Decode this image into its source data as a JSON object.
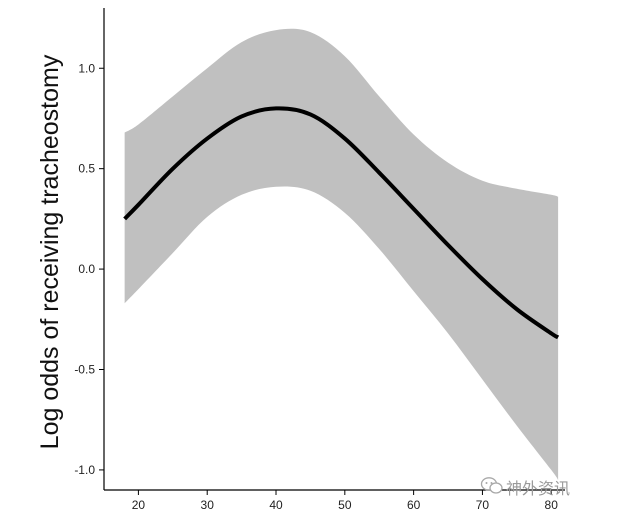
{
  "chart_data": {
    "type": "line",
    "title": "",
    "xlabel": "",
    "ylabel": "Log odds of receiving tracheostomy",
    "xlim": [
      15,
      82
    ],
    "ylim": [
      -1.1,
      1.3
    ],
    "x_ticks": [
      20,
      30,
      40,
      50,
      60,
      70,
      80
    ],
    "y_ticks": [
      -1.0,
      -0.5,
      0.0,
      0.5,
      1.0
    ],
    "y_tick_labels": [
      "-1.0",
      "-0.5",
      "0.0",
      "0.5",
      "1.0"
    ],
    "grid": false,
    "legend": "none",
    "series": [
      {
        "type": "line",
        "color": "#000000",
        "x": [
          18,
          20,
          25,
          30,
          35,
          40,
          45,
          50,
          55,
          60,
          65,
          70,
          75,
          80,
          81
        ],
        "y": [
          0.25,
          0.32,
          0.5,
          0.65,
          0.76,
          0.8,
          0.77,
          0.65,
          0.48,
          0.3,
          0.12,
          -0.05,
          -0.2,
          -0.32,
          -0.34
        ]
      },
      {
        "type": "confidence-band",
        "color": "#c0c0c0",
        "x": [
          18,
          20,
          25,
          30,
          35,
          40,
          45,
          50,
          55,
          60,
          65,
          70,
          75,
          80,
          81
        ],
        "upper": [
          0.68,
          0.72,
          0.86,
          1.0,
          1.13,
          1.19,
          1.18,
          1.06,
          0.86,
          0.67,
          0.53,
          0.44,
          0.4,
          0.37,
          0.36
        ],
        "lower": [
          -0.17,
          -0.1,
          0.08,
          0.26,
          0.37,
          0.41,
          0.39,
          0.28,
          0.1,
          -0.11,
          -0.32,
          -0.55,
          -0.78,
          -1.0,
          -1.05
        ]
      }
    ]
  },
  "watermark": {
    "text": "神外资讯",
    "icon": "wechat-icon"
  }
}
